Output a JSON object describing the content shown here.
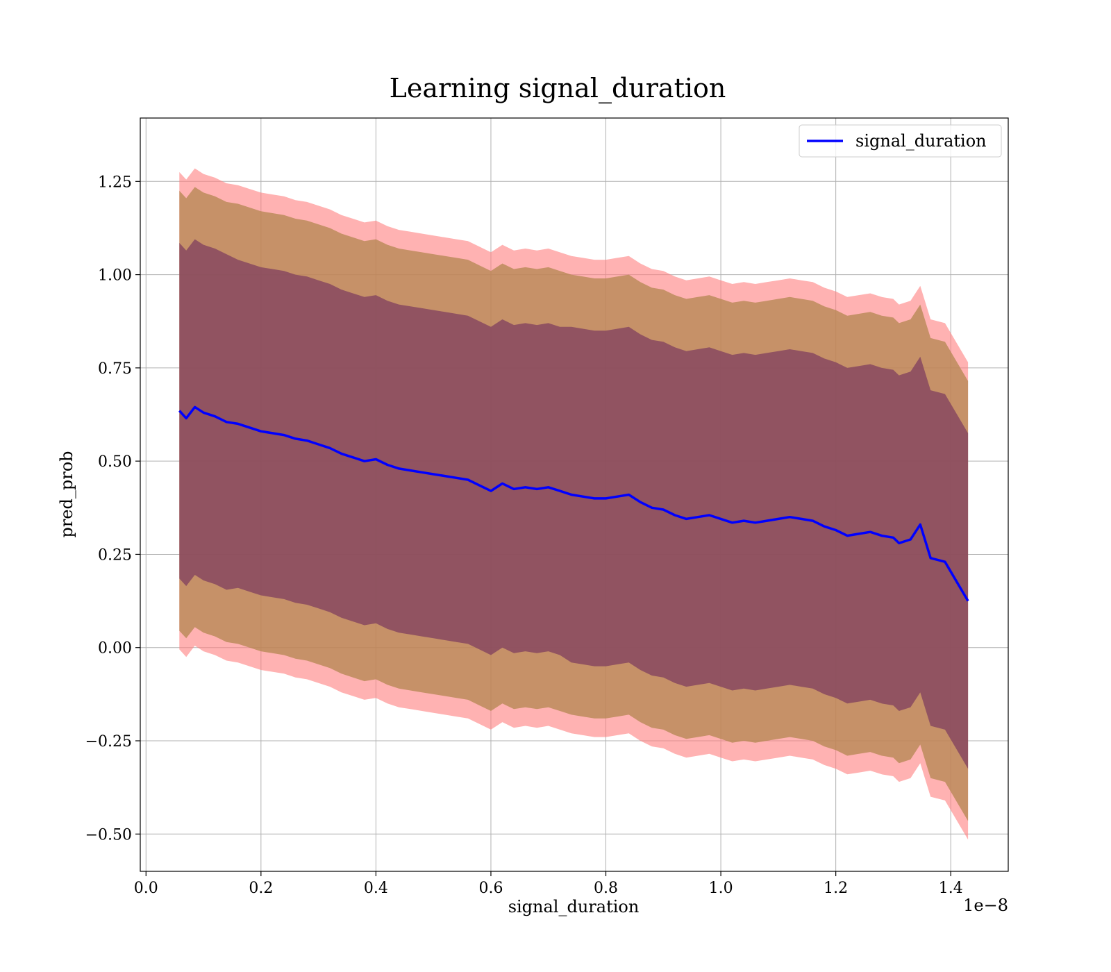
{
  "chart_data": {
    "type": "line",
    "title": "Learning signal_duration",
    "xlabel": "signal_duration",
    "ylabel": "pred_prob",
    "x_multiplier_label": "1e−8",
    "xlim": [
      -0.01,
      1.5
    ],
    "ylim": [
      -0.6,
      1.42
    ],
    "xticks": [
      0.0,
      0.2,
      0.4,
      0.6,
      0.8,
      1.0,
      1.2,
      1.4
    ],
    "xtick_labels": [
      "0.0",
      "0.2",
      "0.4",
      "0.6",
      "0.8",
      "1.0",
      "1.2",
      "1.4"
    ],
    "yticks": [
      -0.5,
      -0.25,
      0.0,
      0.25,
      0.5,
      0.75,
      1.0,
      1.25
    ],
    "ytick_labels": [
      "−0.50",
      "−0.25",
      "0.00",
      "0.25",
      "0.50",
      "0.75",
      "1.00",
      "1.25"
    ],
    "grid": true,
    "legend": {
      "position": "top-right"
    },
    "series": [
      {
        "name": "signal_duration",
        "color": "#0000ff",
        "x": [
          0.058,
          0.07,
          0.085,
          0.1,
          0.12,
          0.14,
          0.16,
          0.18,
          0.2,
          0.22,
          0.24,
          0.26,
          0.28,
          0.3,
          0.32,
          0.34,
          0.36,
          0.38,
          0.4,
          0.42,
          0.44,
          0.46,
          0.48,
          0.5,
          0.52,
          0.54,
          0.56,
          0.58,
          0.6,
          0.62,
          0.64,
          0.66,
          0.68,
          0.7,
          0.72,
          0.74,
          0.76,
          0.78,
          0.8,
          0.82,
          0.84,
          0.86,
          0.88,
          0.9,
          0.92,
          0.94,
          0.96,
          0.98,
          1.0,
          1.02,
          1.04,
          1.06,
          1.08,
          1.1,
          1.12,
          1.14,
          1.16,
          1.18,
          1.2,
          1.22,
          1.24,
          1.26,
          1.28,
          1.3,
          1.31,
          1.33,
          1.347,
          1.365,
          1.39,
          1.43
        ],
        "values": [
          0.635,
          0.615,
          0.645,
          0.63,
          0.62,
          0.605,
          0.6,
          0.59,
          0.58,
          0.575,
          0.57,
          0.56,
          0.555,
          0.545,
          0.535,
          0.52,
          0.51,
          0.5,
          0.505,
          0.49,
          0.48,
          0.475,
          0.47,
          0.465,
          0.46,
          0.455,
          0.45,
          0.435,
          0.42,
          0.44,
          0.425,
          0.43,
          0.425,
          0.43,
          0.42,
          0.41,
          0.405,
          0.4,
          0.4,
          0.405,
          0.41,
          0.39,
          0.375,
          0.37,
          0.355,
          0.345,
          0.35,
          0.355,
          0.345,
          0.335,
          0.34,
          0.335,
          0.34,
          0.345,
          0.35,
          0.345,
          0.34,
          0.325,
          0.315,
          0.3,
          0.305,
          0.31,
          0.3,
          0.295,
          0.28,
          0.29,
          0.33,
          0.24,
          0.23,
          0.125
        ],
        "band_inner_half_width": [
          0.45,
          0.45,
          0.45,
          0.45,
          0.45,
          0.45,
          0.44,
          0.44,
          0.44,
          0.44,
          0.44,
          0.44,
          0.44,
          0.44,
          0.44,
          0.44,
          0.44,
          0.44,
          0.44,
          0.44,
          0.44,
          0.44,
          0.44,
          0.44,
          0.44,
          0.44,
          0.44,
          0.44,
          0.44,
          0.44,
          0.44,
          0.44,
          0.44,
          0.44,
          0.44,
          0.45,
          0.45,
          0.45,
          0.45,
          0.45,
          0.45,
          0.45,
          0.45,
          0.45,
          0.45,
          0.45,
          0.45,
          0.45,
          0.45,
          0.45,
          0.45,
          0.45,
          0.45,
          0.45,
          0.45,
          0.45,
          0.45,
          0.45,
          0.45,
          0.45,
          0.45,
          0.45,
          0.45,
          0.45,
          0.45,
          0.45,
          0.45,
          0.45,
          0.45,
          0.45
        ],
        "band_mid_half_width": [
          0.59,
          0.59,
          0.59,
          0.59,
          0.59,
          0.59,
          0.59,
          0.59,
          0.59,
          0.59,
          0.59,
          0.59,
          0.59,
          0.59,
          0.59,
          0.59,
          0.59,
          0.59,
          0.59,
          0.59,
          0.59,
          0.59,
          0.59,
          0.59,
          0.59,
          0.59,
          0.59,
          0.59,
          0.59,
          0.59,
          0.59,
          0.59,
          0.59,
          0.59,
          0.59,
          0.59,
          0.59,
          0.59,
          0.59,
          0.59,
          0.59,
          0.59,
          0.59,
          0.59,
          0.59,
          0.59,
          0.59,
          0.59,
          0.59,
          0.59,
          0.59,
          0.59,
          0.59,
          0.59,
          0.59,
          0.59,
          0.59,
          0.59,
          0.59,
          0.59,
          0.59,
          0.59,
          0.59,
          0.59,
          0.59,
          0.59,
          0.59,
          0.59,
          0.59,
          0.59
        ],
        "band_outer_half_width": [
          0.64,
          0.64,
          0.64,
          0.64,
          0.64,
          0.64,
          0.64,
          0.64,
          0.64,
          0.64,
          0.64,
          0.64,
          0.64,
          0.64,
          0.64,
          0.64,
          0.64,
          0.64,
          0.64,
          0.64,
          0.64,
          0.64,
          0.64,
          0.64,
          0.64,
          0.64,
          0.64,
          0.64,
          0.64,
          0.64,
          0.64,
          0.64,
          0.64,
          0.64,
          0.64,
          0.64,
          0.64,
          0.64,
          0.64,
          0.64,
          0.64,
          0.64,
          0.64,
          0.64,
          0.64,
          0.64,
          0.64,
          0.64,
          0.64,
          0.64,
          0.64,
          0.64,
          0.64,
          0.64,
          0.64,
          0.64,
          0.64,
          0.64,
          0.64,
          0.64,
          0.64,
          0.64,
          0.64,
          0.64,
          0.64,
          0.64,
          0.64,
          0.64,
          0.64,
          0.64
        ]
      }
    ],
    "band_colors": {
      "outer": "#ff7f7f",
      "mid": "#b3864f",
      "inner": "#7f3f5f"
    }
  }
}
